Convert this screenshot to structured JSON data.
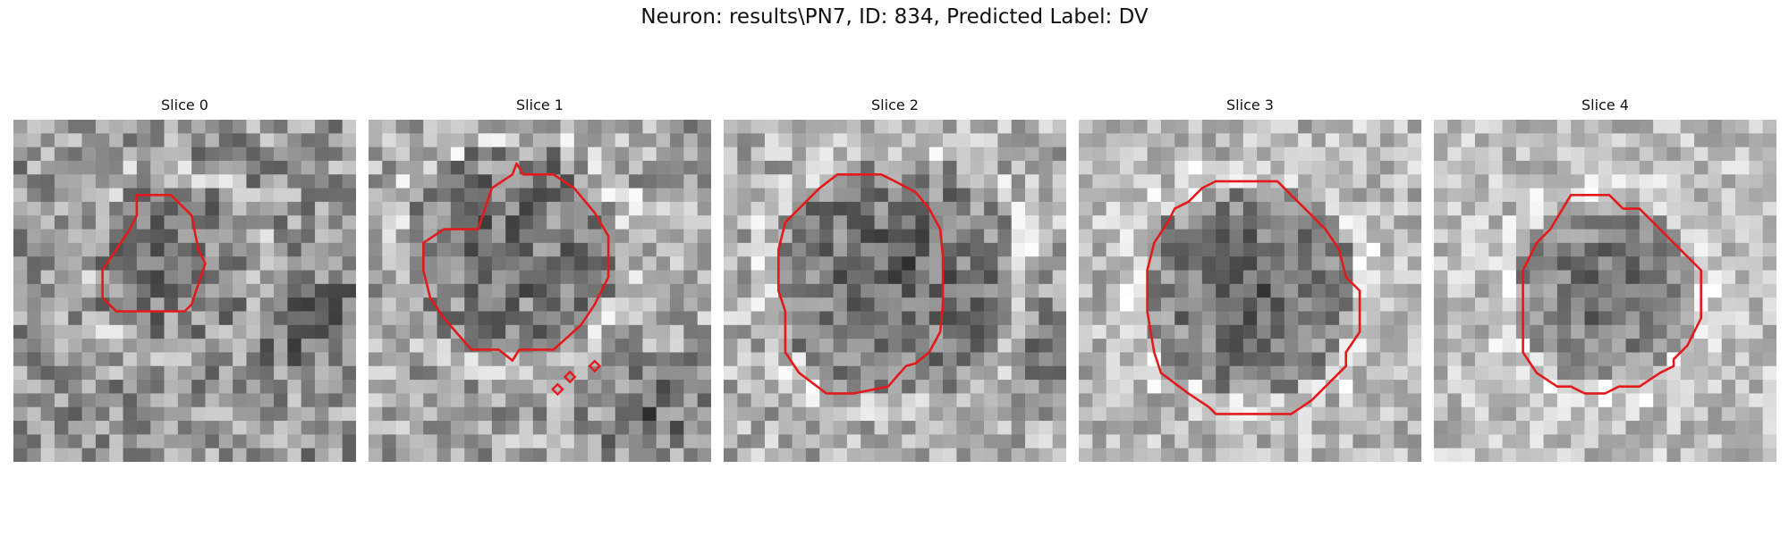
{
  "figure": {
    "title": "Neuron: results\\PN7, ID: 834, Predicted Label: DV",
    "contour_color": "#e31a1c"
  },
  "panels": [
    {
      "title": "Slice 0",
      "image": "grayscale-microscopy-slice",
      "overlay": "red-roi-contour"
    },
    {
      "title": "Slice 1",
      "image": "grayscale-microscopy-slice",
      "overlay": "red-roi-contour"
    },
    {
      "title": "Slice 2",
      "image": "grayscale-microscopy-slice",
      "overlay": "red-roi-contour"
    },
    {
      "title": "Slice 3",
      "image": "grayscale-microscopy-slice",
      "overlay": "red-roi-contour"
    },
    {
      "title": "Slice 4",
      "image": "grayscale-microscopy-slice",
      "overlay": "red-roi-contour"
    }
  ]
}
